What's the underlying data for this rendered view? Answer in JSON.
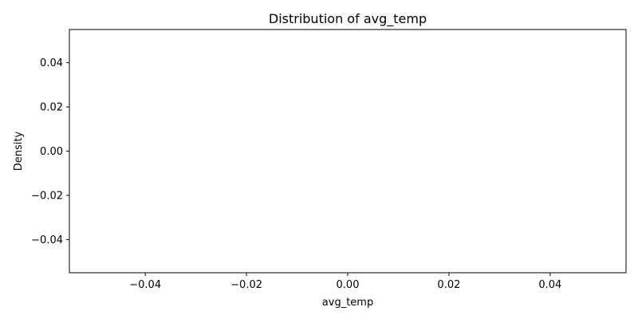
{
  "chart_data": {
    "type": "line",
    "title": "Distribution of avg_temp",
    "xlabel": "avg_temp",
    "ylabel": "Density",
    "xlim": [
      -0.055,
      0.055
    ],
    "ylim": [
      -0.055,
      0.055
    ],
    "x_ticks": [
      {
        "value": -0.04,
        "label": "−0.04"
      },
      {
        "value": -0.02,
        "label": "−0.02"
      },
      {
        "value": 0.0,
        "label": "0.00"
      },
      {
        "value": 0.02,
        "label": "0.02"
      },
      {
        "value": 0.04,
        "label": "0.04"
      }
    ],
    "y_ticks": [
      {
        "value": 0.04,
        "label": "0.04"
      },
      {
        "value": 0.02,
        "label": "0.02"
      },
      {
        "value": 0.0,
        "label": "0.00"
      },
      {
        "value": -0.02,
        "label": "−0.02"
      },
      {
        "value": -0.04,
        "label": "−0.04"
      }
    ],
    "series": [],
    "grid": false
  }
}
